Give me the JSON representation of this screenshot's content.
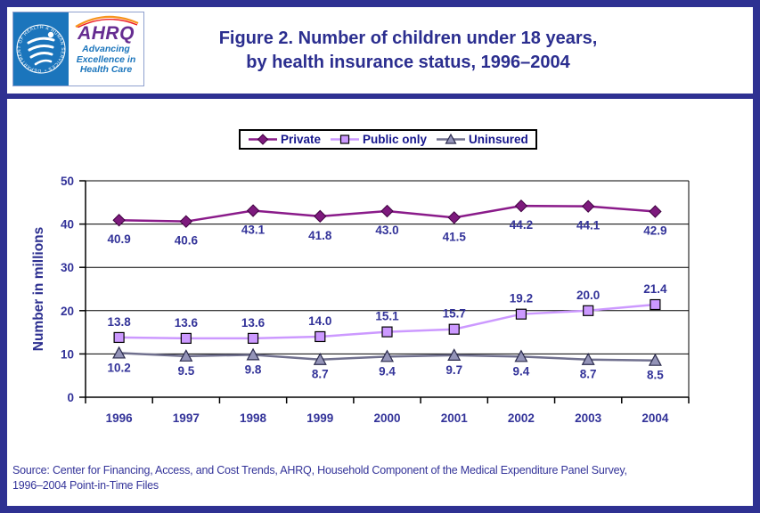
{
  "header": {
    "title_line1": "Figure 2. Number of children under 18 years,",
    "title_line2": "by health insurance status, 1996–2004"
  },
  "logo": {
    "ahrq": "AHRQ",
    "tagline_line1": "Advancing",
    "tagline_line2": "Excellence in",
    "tagline_line3": "Health Care",
    "hhs_seal_text": "DEPARTMENT OF HEALTH & HUMAN SERVICES • USA"
  },
  "chart_data": {
    "type": "line",
    "title": "Number of children under 18 years, by health insurance status, 1996–2004",
    "categories": [
      "1996",
      "1997",
      "1998",
      "1999",
      "2000",
      "2001",
      "2002",
      "2003",
      "2004"
    ],
    "series": [
      {
        "name": "Private",
        "values": [
          40.9,
          40.6,
          43.1,
          41.8,
          43.0,
          41.5,
          44.2,
          44.1,
          42.9
        ],
        "marker": "diamond",
        "label_position": "below",
        "line_color": "#8A1B8A",
        "marker_fill": "#7D1A7D",
        "marker_stroke": "#3F0040"
      },
      {
        "name": "Public only",
        "values": [
          13.8,
          13.6,
          13.6,
          14.0,
          15.1,
          15.7,
          19.2,
          20.0,
          21.4
        ],
        "marker": "square",
        "label_position": "above",
        "line_color": "#CC99FF",
        "marker_fill": "#CC99FF",
        "marker_stroke": "#000000"
      },
      {
        "name": "Uninsured",
        "values": [
          10.2,
          9.5,
          9.8,
          8.7,
          9.4,
          9.7,
          9.4,
          8.7,
          8.5
        ],
        "marker": "triangle",
        "label_position": "below",
        "line_color": "#70708E",
        "marker_fill": "#9494B8",
        "marker_stroke": "#2B2B4D"
      }
    ],
    "xlabel": "",
    "ylabel": "Number in millions",
    "ylim": [
      0,
      50
    ],
    "yticks": [
      0,
      10,
      20,
      30,
      40,
      50
    ],
    "grid": true,
    "legend_position": "top"
  },
  "source": {
    "line1": "Source: Center for Financing, Access, and Cost Trends, AHRQ, Household Component of the Medical Expenditure Panel Survey,",
    "line2": "1996–2004 Point-in-Time Files"
  },
  "colors": {
    "page_border": "#2E3192",
    "title_text": "#2B2E8F",
    "chart_text": "#333399",
    "legend_text": "#16168C",
    "hhs_blue": "#1B75BC",
    "ahrq_purple": "#662D91",
    "gridline": "#000000"
  }
}
